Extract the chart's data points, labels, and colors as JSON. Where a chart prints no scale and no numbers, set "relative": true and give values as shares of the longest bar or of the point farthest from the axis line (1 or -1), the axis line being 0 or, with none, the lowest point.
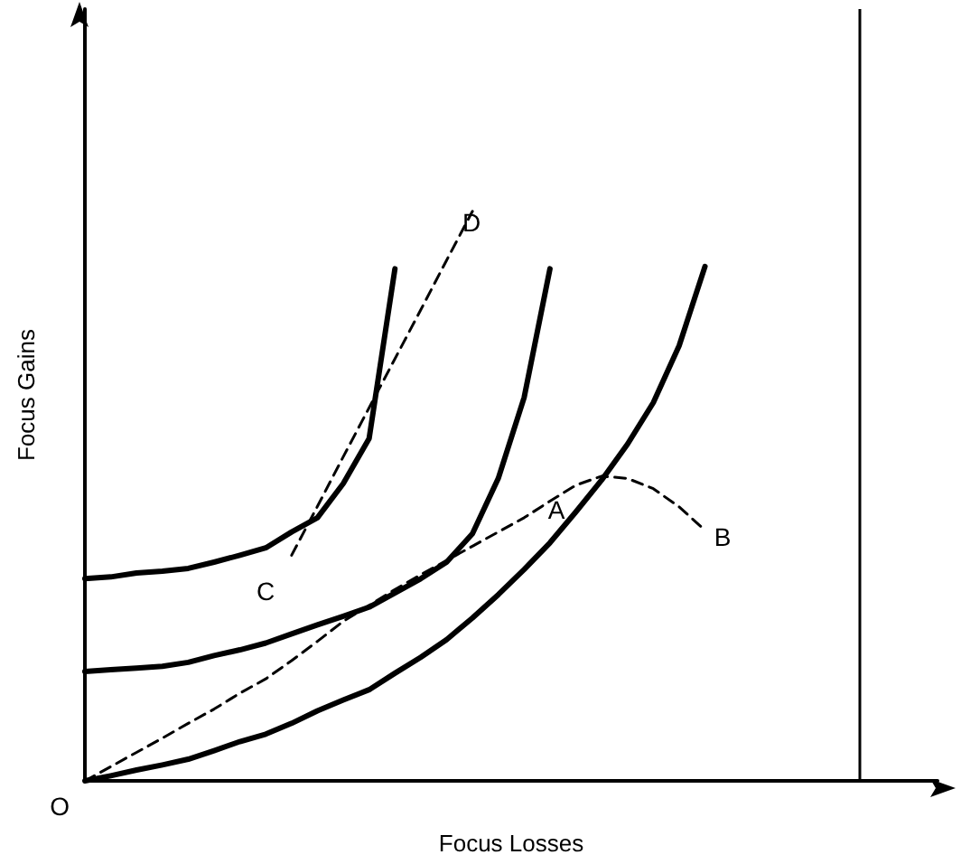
{
  "chart_data": {
    "type": "line",
    "relative": true,
    "xlabel": "Focus Losses",
    "ylabel": "Focus Gains",
    "categories": [
      null,
      null,
      null,
      null,
      null,
      null,
      null,
      null,
      null,
      null,
      null,
      null,
      null,
      null,
      null,
      null,
      null,
      null,
      null,
      null,
      null,
      null,
      null,
      null,
      null,
      null,
      null,
      null,
      null,
      null,
      null,
      null,
      null,
      null
    ],
    "series": [
      {
        "color": "#000000",
        "line_style": "solid",
        "values": [
          0.355,
          0.358,
          0.365,
          0.368,
          0.373,
          0.384,
          0.396,
          0.409,
          0.437,
          0.462,
          0.522,
          0.601,
          0.899,
          null,
          null,
          null,
          null,
          null,
          null,
          null,
          null,
          null,
          null,
          null,
          null,
          null,
          null,
          null,
          null,
          null,
          null,
          null,
          null,
          null
        ]
      },
      {
        "color": "#000000",
        "line_style": "solid",
        "values": [
          0.192,
          0.195,
          0.198,
          0.201,
          0.208,
          0.22,
          0.23,
          0.242,
          0.258,
          0.274,
          0.289,
          0.305,
          0.33,
          0.355,
          0.384,
          0.434,
          0.531,
          0.673,
          0.899,
          null,
          null,
          null,
          null,
          null,
          null,
          null,
          null,
          null,
          null,
          null,
          null,
          null,
          null,
          null
        ]
      },
      {
        "color": "#000000",
        "line_style": "solid",
        "values": [
          0,
          0.009,
          0.019,
          0.028,
          0.038,
          0.053,
          0.069,
          0.082,
          0.101,
          0.123,
          0.142,
          0.16,
          0.189,
          0.217,
          0.248,
          0.286,
          0.327,
          0.371,
          0.418,
          0.472,
          0.528,
          0.591,
          0.664,
          0.764,
          0.903,
          null,
          null,
          null,
          null,
          null,
          null,
          null,
          null,
          null
        ]
      },
      {
        "color": "#000000",
        "line_style": "dashed",
        "values": [
          0,
          0.025,
          0.05,
          0.075,
          0.101,
          0.126,
          0.154,
          0.179,
          0.211,
          0.245,
          0.28,
          0.308,
          0.336,
          0.362,
          0.387,
          0.412,
          0.437,
          0.462,
          0.491,
          0.519,
          0.535,
          0.531,
          0.513,
          0.481,
          0.44,
          null,
          null,
          null,
          null,
          null,
          null,
          null,
          null,
          null
        ]
      },
      {
        "color": "#000000",
        "line_style": "dashed",
        "values": [
          null,
          null,
          null,
          null,
          null,
          null,
          null,
          null,
          0.396,
          0.482,
          0.569,
          0.655,
          0.741,
          0.827,
          0.914,
          1,
          null,
          null,
          null,
          null,
          null,
          null,
          null,
          null,
          null,
          null,
          null,
          null,
          null,
          null,
          null,
          null,
          null,
          null
        ]
      }
    ],
    "annotations": [
      "O",
      "A",
      "B",
      "C",
      "D"
    ],
    "grid": false,
    "marker": "none"
  }
}
